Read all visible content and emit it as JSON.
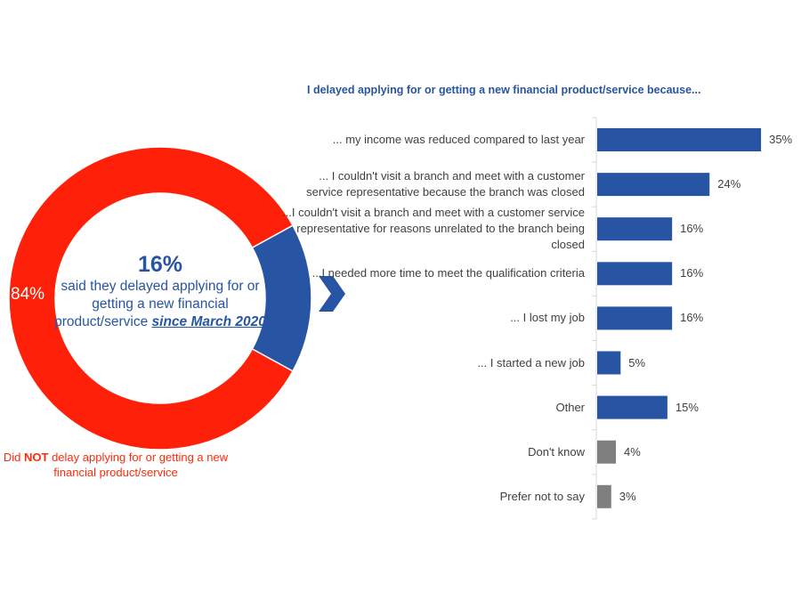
{
  "donut": {
    "center_percent": "16%",
    "center_text": "said they delayed applying for or getting a new financial product/service",
    "center_emphasis": "since March 2020",
    "other_percent": "84%",
    "other_label_prefix": "Did ",
    "other_label_bold": "NOT",
    "other_label_suffix": " delay applying for or getting a new financial product/service",
    "colors": {
      "delayed": "#2855a3",
      "not_delayed": "#ff200a"
    }
  },
  "chart_data": [
    {
      "type": "pie",
      "variant": "donut",
      "slices": [
        {
          "label": "Delayed",
          "value": 16
        },
        {
          "label": "Did NOT delay",
          "value": 84
        }
      ]
    },
    {
      "type": "bar",
      "orientation": "horizontal",
      "title": "I delayed applying for or getting a new financial product/service because...",
      "categories": [
        "... my income was reduced compared to last year",
        "... I couldn't visit a branch and meet with a customer service representative because the branch was closed",
        "...I couldn't visit a branch and meet with a customer service representative for reasons unrelated to the branch being closed",
        "...I needed more time to meet the qualification criteria",
        "... I lost my job",
        "... I started a new job",
        "Other",
        "Don't know",
        "Prefer not to say"
      ],
      "values": [
        35,
        24,
        16,
        16,
        16,
        5,
        15,
        4,
        3
      ],
      "labels": [
        "35%",
        "24%",
        "16%",
        "16%",
        "16%",
        "5%",
        "15%",
        "4%",
        "3%"
      ],
      "colors": [
        "#2855a3",
        "#2855a3",
        "#2855a3",
        "#2855a3",
        "#2855a3",
        "#2855a3",
        "#2855a3",
        "#7f7f7f",
        "#7f7f7f"
      ],
      "grid": false
    }
  ]
}
